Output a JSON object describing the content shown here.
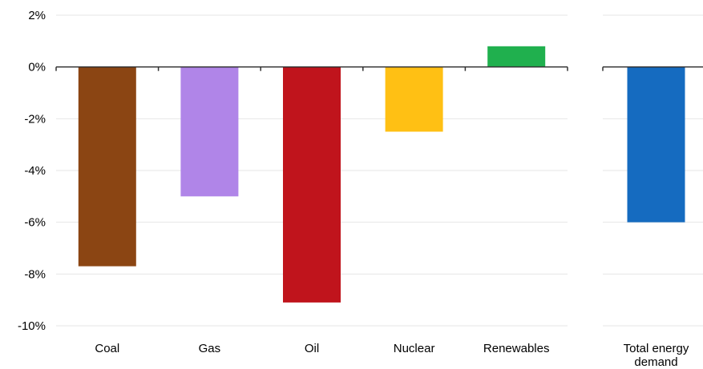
{
  "chart_data": {
    "type": "bar",
    "title": "",
    "xlabel": "",
    "ylabel": "",
    "ylim": [
      -10,
      2
    ],
    "yticks": [
      2,
      0,
      -2,
      -4,
      -6,
      -8,
      -10
    ],
    "ytick_labels": [
      "2%",
      "0%",
      "-2%",
      "-4%",
      "-6%",
      "-8%",
      "-10%"
    ],
    "grid": true,
    "panels": [
      {
        "categories": [
          {
            "label": "Coal",
            "lines": [
              "Coal"
            ]
          },
          {
            "label": "Gas",
            "lines": [
              "Gas"
            ]
          },
          {
            "label": "Oil",
            "lines": [
              "Oil"
            ]
          },
          {
            "label": "Nuclear",
            "lines": [
              "Nuclear"
            ]
          },
          {
            "label": "Renewables",
            "lines": [
              "Renewables"
            ]
          }
        ],
        "values": [
          -7.7,
          -5.0,
          -9.1,
          -2.5,
          0.8
        ],
        "colors": [
          "#8B4513",
          "#B085E8",
          "#C0141C",
          "#FFC014",
          "#20B04E"
        ]
      },
      {
        "categories": [
          {
            "label": "Total energy demand",
            "lines": [
              "Total energy",
              "demand"
            ]
          }
        ],
        "values": [
          -6.0
        ],
        "colors": [
          "#156BC0"
        ]
      }
    ]
  }
}
